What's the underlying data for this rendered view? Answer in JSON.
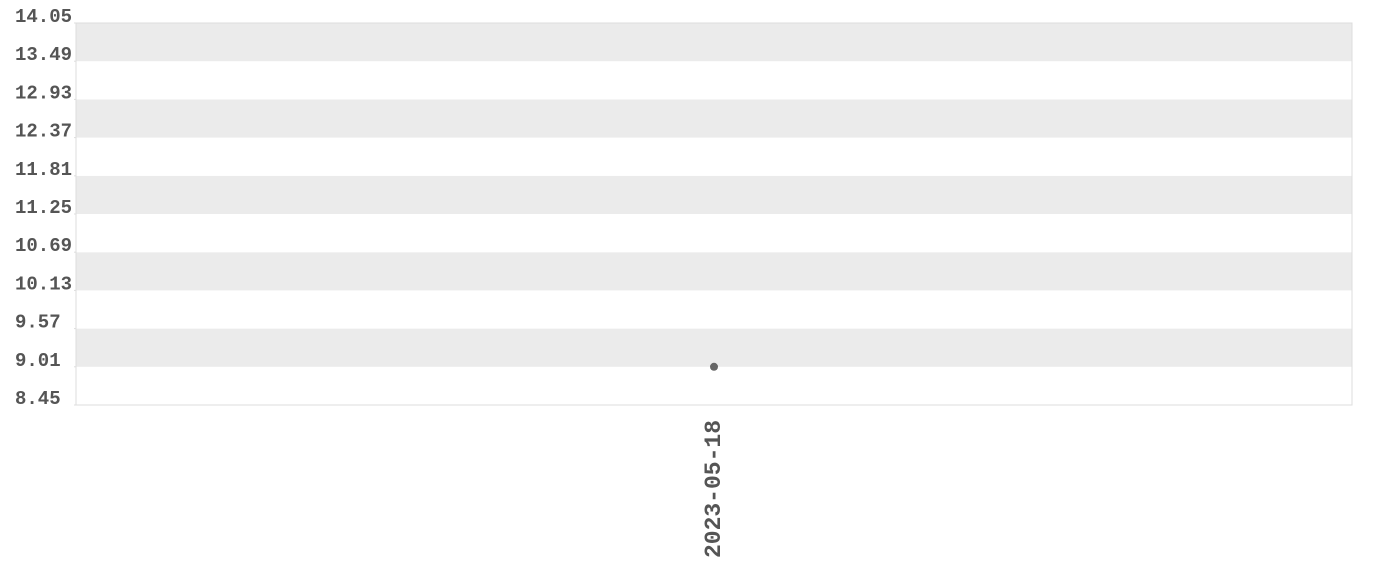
{
  "chart_data": {
    "type": "line",
    "categories": [
      "2023-05-18"
    ],
    "values": [
      9.01
    ],
    "color": "#666666",
    "ylim": [
      8.45,
      14.05
    ],
    "yticks": [
      8.45,
      9.01,
      9.57,
      10.13,
      10.69,
      11.25,
      11.81,
      12.37,
      12.93,
      13.49,
      14.05
    ],
    "bands": true
  }
}
